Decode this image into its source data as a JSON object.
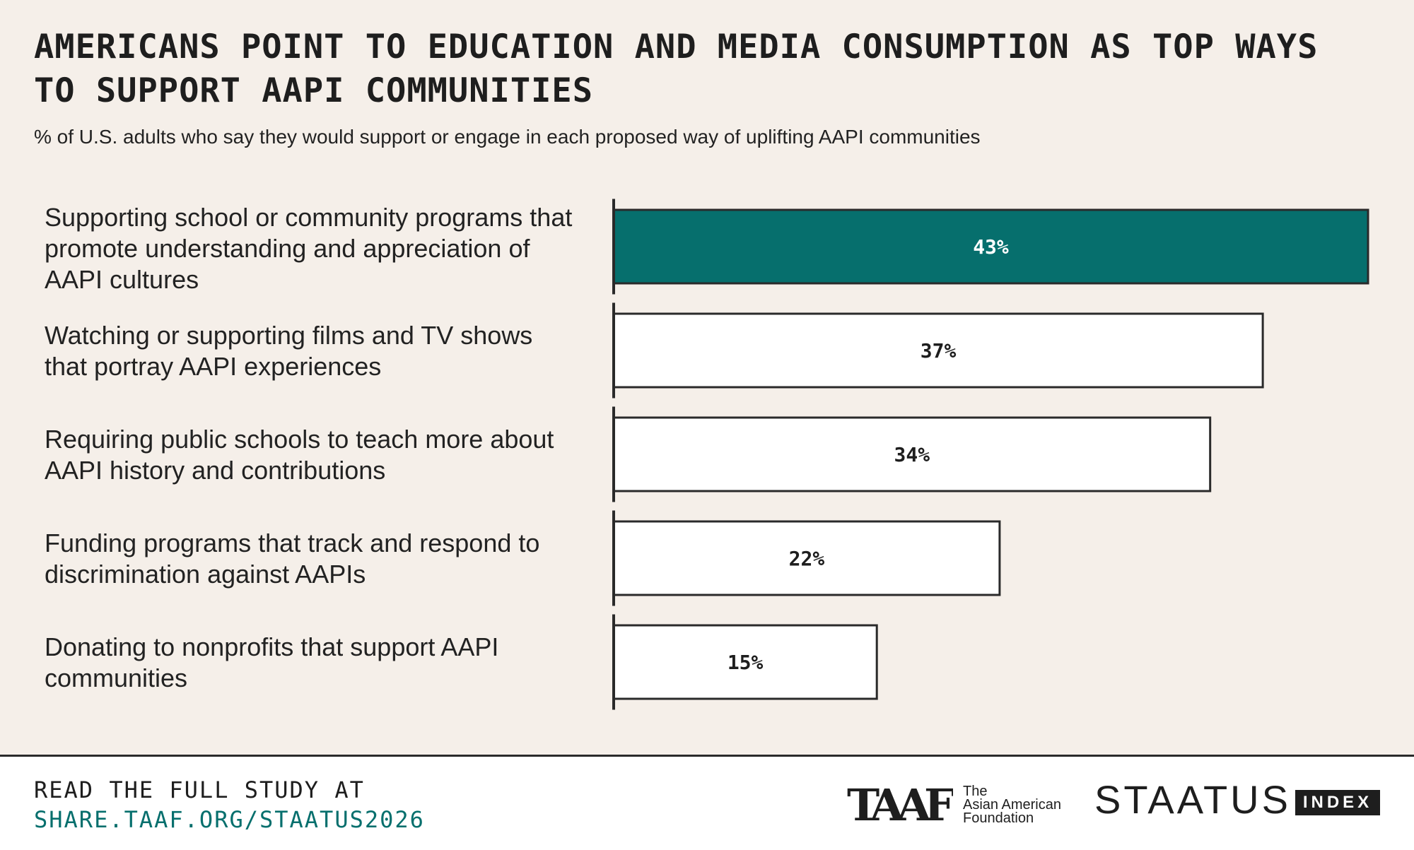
{
  "header": {
    "title": "Americans point to education and media consumption as top ways to support AAPI communities",
    "subtitle": "% of U.S. adults who say they would support or engage in each proposed way of uplifting AAPI communities"
  },
  "chart_data": {
    "type": "bar",
    "orientation": "horizontal",
    "title": "Americans point to education and media consumption as top ways to support AAPI communities",
    "subtitle": "% of U.S. adults who say they would support or engage in each proposed way of uplifting AAPI communities",
    "categories": [
      "Supporting school or community programs that promote understanding and appreciation of AAPI cultures",
      "Watching or supporting films and TV shows that portray AAPI experiences",
      "Requiring public schools to teach more about AAPI history and contributions",
      "Funding programs that track and respond to discrimination against AAPIs",
      "Donating to nonprofits that support AAPI communities"
    ],
    "values": [
      43,
      37,
      34,
      22,
      15
    ],
    "value_labels": [
      "43%",
      "37%",
      "34%",
      "22%",
      "15%"
    ],
    "xlim": [
      0,
      43
    ],
    "xlabel": "",
    "ylabel": "",
    "grid": false,
    "highlight_index": 0,
    "colors": {
      "highlight_fill": "#066f6d",
      "default_fill": "#ffffff",
      "stroke": "#2a2a2a",
      "highlight_text": "#ffffff",
      "default_text": "#1e1e1e"
    }
  },
  "footer": {
    "cta_line1": "Read the full study at",
    "cta_line2": "share.taaf.org/staatus2026",
    "cta_color": "#066f6d",
    "taaf_logo_text": "TAAF",
    "taaf_name_line1": "The",
    "taaf_name_line2": "Asian American",
    "taaf_name_line3": "Foundation",
    "staatus_word": "STAATUS",
    "index_badge": "INDEX"
  }
}
